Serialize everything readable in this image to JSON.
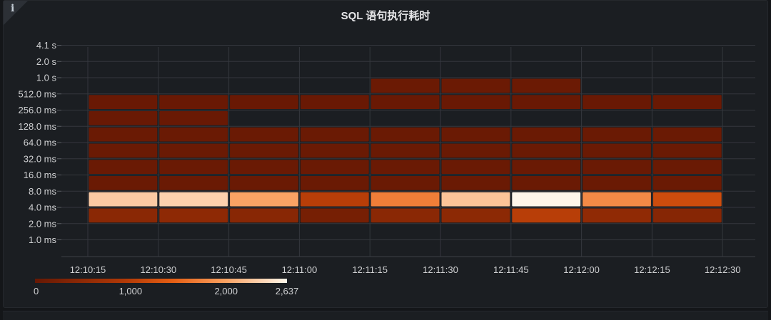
{
  "panel": {
    "title": "SQL 语句执行耗时",
    "info_icon": "info-icon",
    "info_glyph": "i"
  },
  "chart_data": {
    "type": "heatmap",
    "title": "SQL 语句执行耗时",
    "x_ticks": [
      "12:10:15",
      "12:10:30",
      "12:10:45",
      "12:11:00",
      "12:11:15",
      "12:11:30",
      "12:11:45",
      "12:12:00",
      "12:12:15",
      "12:12:30"
    ],
    "y_buckets": [
      "1.0 ms",
      "2.0 ms",
      "4.0 ms",
      "8.0 ms",
      "16.0 ms",
      "32.0 ms",
      "64.0 ms",
      "128.0 ms",
      "256.0 ms",
      "512.0 ms",
      "1.0 s",
      "2.0 s",
      "4.1 s"
    ],
    "scale": {
      "min": 0,
      "max": 2637,
      "tick_labels": [
        "0",
        "1,000",
        "2,000",
        "2,637"
      ],
      "tick_values": [
        0,
        1000,
        2000,
        2637
      ]
    },
    "color_scheme": "oranges",
    "cells": [
      [
        0,
        1,
        450
      ],
      [
        0,
        2,
        2300
      ],
      [
        0,
        3,
        50
      ],
      [
        0,
        4,
        50
      ],
      [
        0,
        5,
        50
      ],
      [
        0,
        6,
        50
      ],
      [
        0,
        7,
        40
      ],
      [
        0,
        8,
        40
      ],
      [
        1,
        1,
        500
      ],
      [
        1,
        2,
        2350
      ],
      [
        1,
        3,
        50
      ],
      [
        1,
        4,
        50
      ],
      [
        1,
        5,
        50
      ],
      [
        1,
        6,
        50
      ],
      [
        1,
        7,
        40
      ],
      [
        1,
        8,
        40
      ],
      [
        2,
        1,
        420
      ],
      [
        2,
        2,
        2000
      ],
      [
        2,
        3,
        50
      ],
      [
        2,
        4,
        50
      ],
      [
        2,
        5,
        50
      ],
      [
        2,
        6,
        50
      ],
      [
        2,
        8,
        40
      ],
      [
        3,
        1,
        200
      ],
      [
        3,
        2,
        1000
      ],
      [
        3,
        3,
        50
      ],
      [
        3,
        4,
        50
      ],
      [
        3,
        5,
        50
      ],
      [
        3,
        6,
        50
      ],
      [
        3,
        8,
        40
      ],
      [
        4,
        1,
        450
      ],
      [
        4,
        2,
        1700
      ],
      [
        4,
        3,
        50
      ],
      [
        4,
        4,
        50
      ],
      [
        4,
        5,
        50
      ],
      [
        4,
        6,
        50
      ],
      [
        4,
        8,
        40
      ],
      [
        4,
        9,
        60
      ],
      [
        5,
        1,
        480
      ],
      [
        5,
        2,
        2250
      ],
      [
        5,
        3,
        50
      ],
      [
        5,
        4,
        50
      ],
      [
        5,
        5,
        50
      ],
      [
        5,
        6,
        50
      ],
      [
        5,
        8,
        40
      ],
      [
        5,
        9,
        60
      ],
      [
        6,
        1,
        1000
      ],
      [
        6,
        2,
        2637
      ],
      [
        6,
        3,
        50
      ],
      [
        6,
        4,
        50
      ],
      [
        6,
        5,
        50
      ],
      [
        6,
        6,
        50
      ],
      [
        6,
        8,
        40
      ],
      [
        6,
        9,
        60
      ],
      [
        7,
        1,
        520
      ],
      [
        7,
        2,
        1800
      ],
      [
        7,
        3,
        50
      ],
      [
        7,
        4,
        50
      ],
      [
        7,
        5,
        50
      ],
      [
        7,
        6,
        50
      ],
      [
        7,
        8,
        40
      ],
      [
        8,
        1,
        400
      ],
      [
        8,
        2,
        1200
      ],
      [
        8,
        3,
        50
      ],
      [
        8,
        4,
        50
      ],
      [
        8,
        5,
        50
      ],
      [
        8,
        6,
        50
      ],
      [
        8,
        8,
        40
      ]
    ],
    "grid": true,
    "legend_position": "bottom-left"
  }
}
